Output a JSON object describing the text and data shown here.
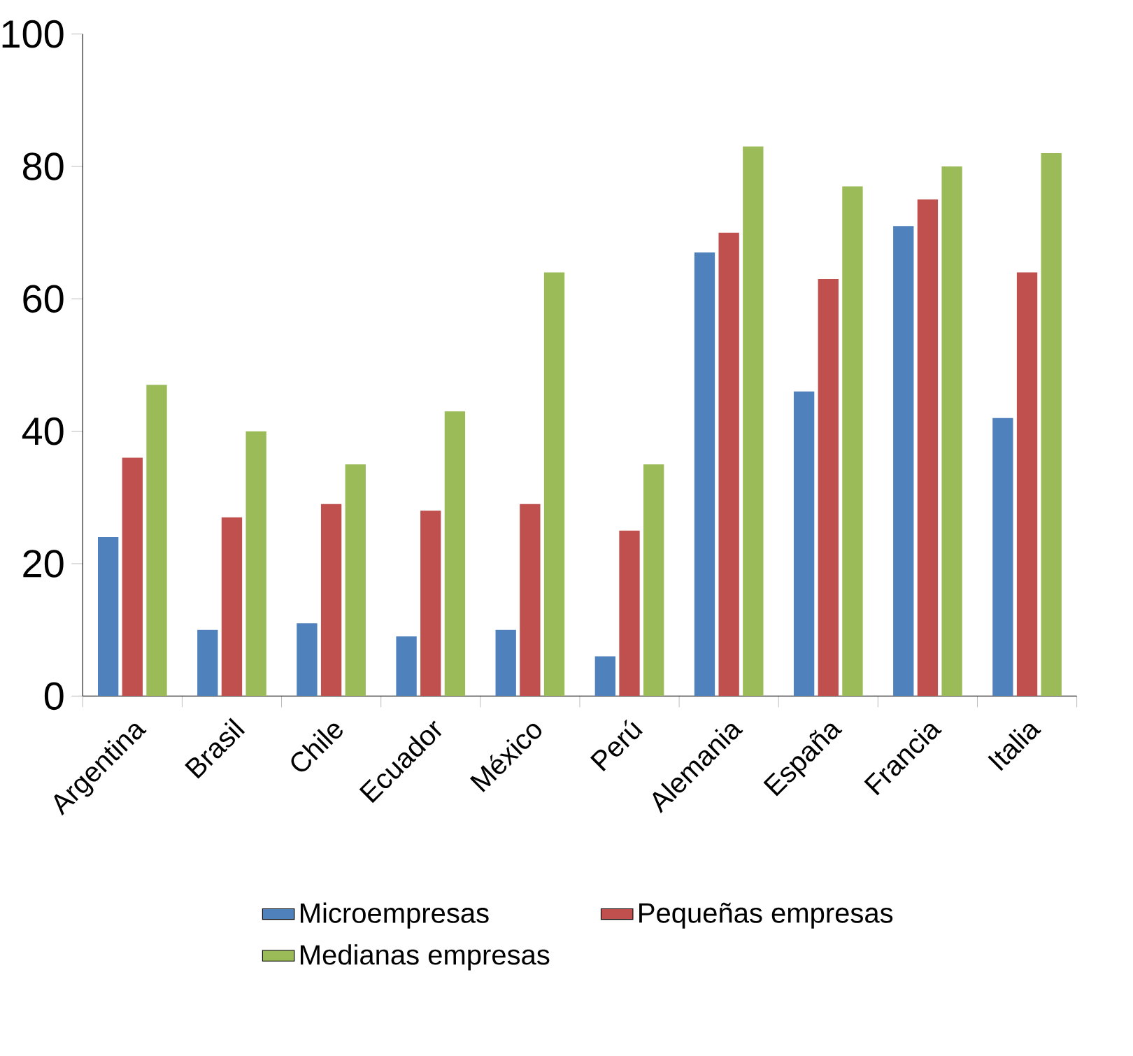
{
  "chart_data": {
    "type": "bar",
    "categories": [
      "Argentina",
      "Brasil",
      "Chile",
      "Ecuador",
      "México",
      "Perú",
      "Alemania",
      "España",
      "Francia",
      "Italia"
    ],
    "series": [
      {
        "name": "Microempresas",
        "color": "#4f81bd",
        "values": [
          24,
          10,
          11,
          9,
          10,
          6,
          67,
          46,
          71,
          42
        ]
      },
      {
        "name": "Pequeñas empresas",
        "color": "#c0504d",
        "values": [
          36,
          27,
          29,
          28,
          29,
          25,
          70,
          63,
          75,
          64
        ]
      },
      {
        "name": "Medianas empresas",
        "color": "#9bbb59",
        "values": [
          47,
          40,
          35,
          43,
          64,
          35,
          83,
          77,
          80,
          82
        ]
      }
    ],
    "ylim": [
      0,
      100
    ],
    "yticks": [
      0,
      20,
      40,
      60,
      80,
      100
    ],
    "grid": false,
    "legend": "bottom"
  }
}
